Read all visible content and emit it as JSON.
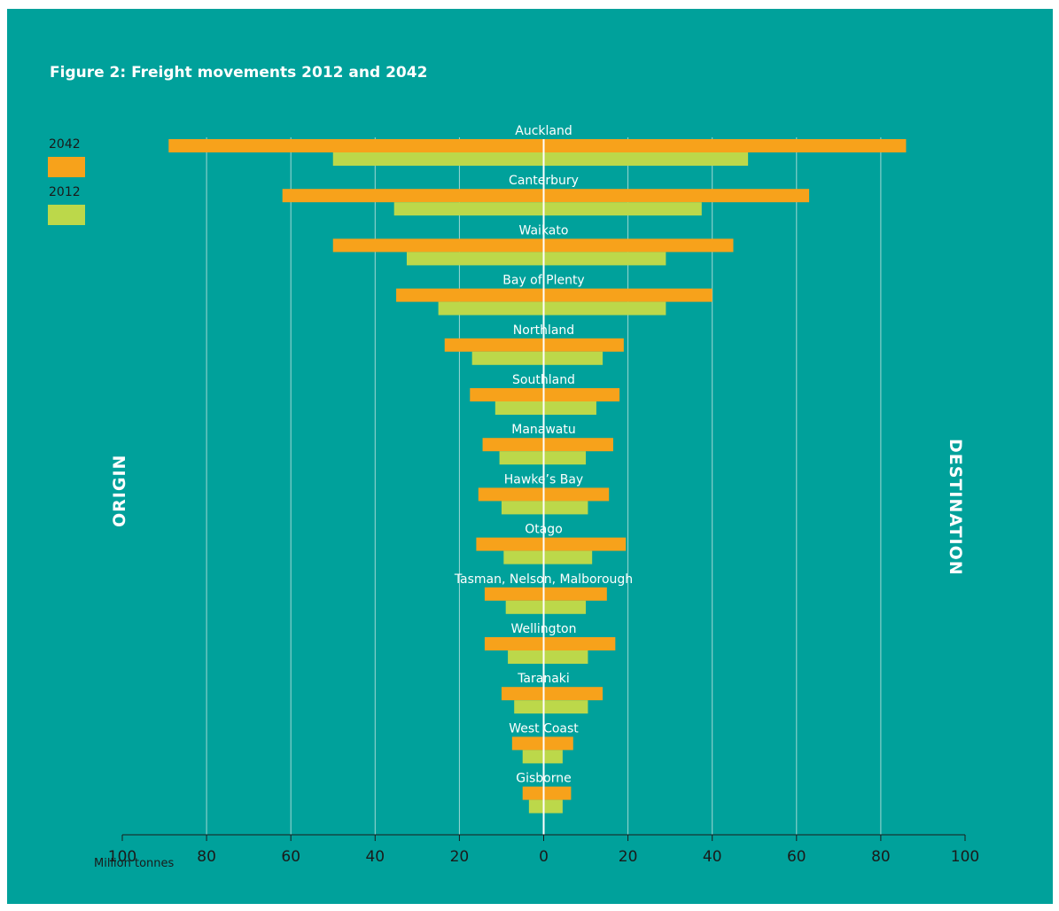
{
  "chart_data": {
    "type": "bar",
    "title": "Figure 2: Freight movements 2012 and 2042",
    "xlabel": "Million tonnes",
    "left_label": "ORIGIN",
    "right_label": "DESTINATION",
    "xlim": [
      -100,
      100
    ],
    "tick_values": [
      -100,
      -80,
      -60,
      -40,
      -20,
      0,
      20,
      40,
      60,
      80,
      100
    ],
    "tick_labels": [
      "100",
      "80",
      "60",
      "40",
      "20",
      "0",
      "20",
      "40",
      "60",
      "80",
      "100"
    ],
    "grid": true,
    "legend_position": "top-left",
    "categories": [
      "Auckland",
      "Canterbury",
      "Waikato",
      "Bay of Plenty",
      "Northland",
      "Southland",
      "Manawatu",
      "Hawke’s Bay",
      "Otago",
      "Tasman, Nelson, Malborough",
      "Wellington",
      "Taranaki",
      "West Coast",
      "Gisborne"
    ],
    "series": [
      {
        "name": "2042",
        "color": "#f7a21b",
        "origin": [
          89,
          62,
          50,
          35,
          23.5,
          17.5,
          14.5,
          15.5,
          16,
          14,
          14,
          10,
          7.5,
          5
        ],
        "destination": [
          86,
          63,
          45,
          40,
          19,
          18,
          16.5,
          15.5,
          19.5,
          15,
          17,
          14,
          7,
          6.5
        ]
      },
      {
        "name": "2012",
        "color": "#bcd84a",
        "origin": [
          50,
          35.5,
          32.5,
          25,
          17,
          11.5,
          10.5,
          10,
          9.5,
          9,
          8.5,
          7,
          5,
          3.5
        ],
        "destination": [
          48.5,
          37.5,
          29,
          29,
          14,
          12.5,
          10,
          10.5,
          11.5,
          10,
          10.5,
          10.5,
          4.5,
          4.5
        ]
      }
    ]
  }
}
